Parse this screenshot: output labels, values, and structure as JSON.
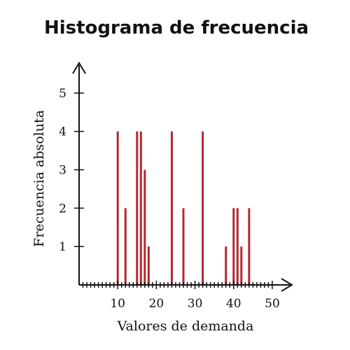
{
  "chart_data": {
    "type": "bar",
    "title": "Histograma de frecuencia",
    "xlabel": "Valores de demanda",
    "ylabel": "Frecuencia absoluta",
    "xlim": [
      0,
      52
    ],
    "ylim": [
      0,
      5.6
    ],
    "x_ticks": [
      10,
      20,
      30,
      40,
      50
    ],
    "y_ticks": [
      1,
      2,
      3,
      4,
      5
    ],
    "x_minor_step": 1,
    "grid": false,
    "bar_color": "#b5282f",
    "axis_color": "#111111",
    "x": [
      10,
      12,
      15,
      16,
      17,
      18,
      24,
      27,
      32,
      38,
      40,
      41,
      42,
      44
    ],
    "values": [
      4,
      2,
      4,
      4,
      3,
      1,
      4,
      2,
      4,
      1,
      2,
      2,
      1,
      2
    ]
  }
}
